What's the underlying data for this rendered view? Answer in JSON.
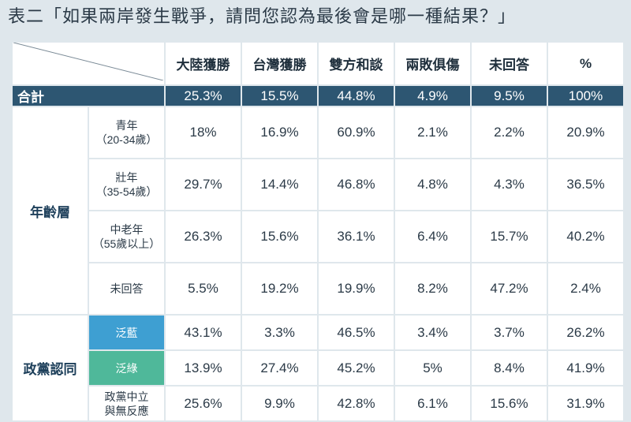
{
  "title": "表二「如果兩岸發生戰爭，請問您認為最後會是哪一種結果？」",
  "columns": [
    "大陸獲勝",
    "台灣獲勝",
    "雙方和談",
    "兩敗俱傷",
    "未回答",
    "%"
  ],
  "total": {
    "label": "合計",
    "values": [
      "25.3%",
      "15.5%",
      "44.8%",
      "4.9%",
      "9.5%",
      "100%"
    ]
  },
  "groups": [
    {
      "label": "年齡層",
      "rows": [
        {
          "label_line1": "青年",
          "label_line2": "（20-34歲）",
          "values": [
            "18%",
            "16.9%",
            "60.9%",
            "2.1%",
            "2.2%",
            "20.9%"
          ]
        },
        {
          "label_line1": "壯年",
          "label_line2": "（35-54歲）",
          "values": [
            "29.7%",
            "14.4%",
            "46.8%",
            "4.8%",
            "4.3%",
            "36.5%"
          ]
        },
        {
          "label_line1": "中老年",
          "label_line2": "（55歲以上）",
          "values": [
            "26.3%",
            "15.6%",
            "36.1%",
            "6.4%",
            "15.7%",
            "40.2%"
          ]
        },
        {
          "label_line1": "未回答",
          "label_line2": "",
          "values": [
            "5.5%",
            "19.2%",
            "19.9%",
            "8.2%",
            "47.2%",
            "2.4%"
          ]
        }
      ]
    },
    {
      "label": "政黨認同",
      "rows": [
        {
          "label_line1": "泛藍",
          "label_line2": "",
          "values": [
            "43.1%",
            "3.3%",
            "46.5%",
            "3.4%",
            "3.7%",
            "26.2%"
          ]
        },
        {
          "label_line1": "泛綠",
          "label_line2": "",
          "values": [
            "13.9%",
            "27.4%",
            "45.2%",
            "5%",
            "8.4%",
            "41.9%"
          ]
        },
        {
          "label_line1": "政黨中立",
          "label_line2": "與無反應",
          "values": [
            "25.6%",
            "9.9%",
            "42.8%",
            "6.1%",
            "15.6%",
            "31.9%"
          ]
        }
      ]
    }
  ],
  "colors": {
    "header_bar": "#2d5672",
    "pan_blue": "#3e9fd2",
    "pan_green": "#4fb89a",
    "background": "#dfe7ec"
  }
}
